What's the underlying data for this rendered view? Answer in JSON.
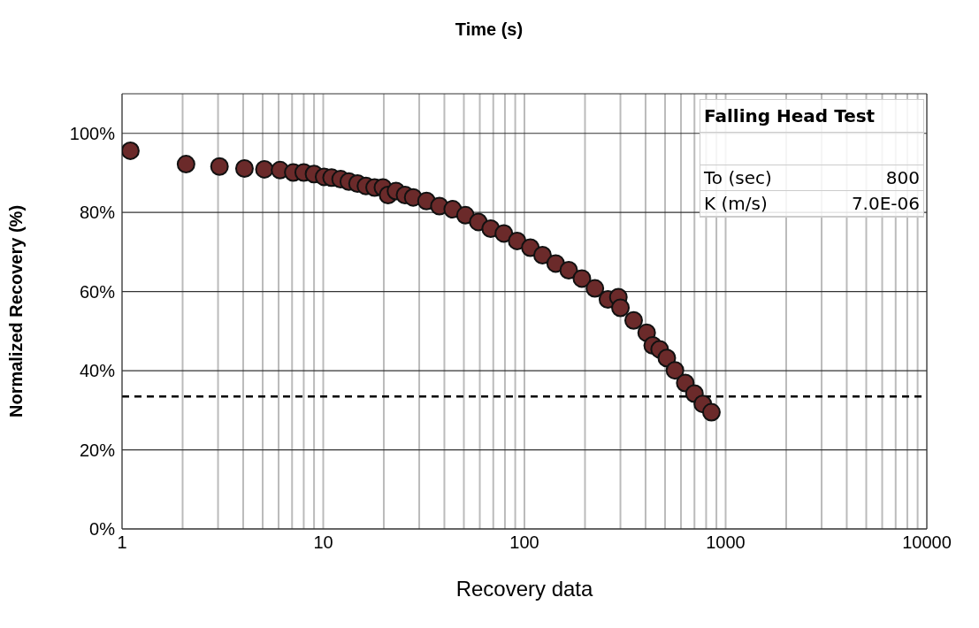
{
  "chart_data": {
    "type": "scatter",
    "title": "Time (s)",
    "xlabel": "Recovery data",
    "ylabel": "Normalized Recovery (%)",
    "annotations": [
      "Falling Head Test",
      "To (sec)",
      "800",
      "K (m/s)",
      "7.0E-06"
    ],
    "log": "x",
    "xlim": [
      1,
      10000
    ],
    "xticks": [
      1,
      10,
      100,
      1000,
      10000
    ],
    "ylim": [
      0,
      110
    ],
    "yticks": [
      {
        "value": 0,
        "label": "0%"
      },
      {
        "value": 20,
        "label": "20%"
      },
      {
        "value": 40,
        "label": "40%"
      },
      {
        "value": 60,
        "label": "60%"
      },
      {
        "value": 80,
        "label": "80%"
      },
      {
        "value": 100,
        "label": "100%"
      }
    ],
    "grid": true,
    "marker": "circle",
    "ref_lines": [
      {
        "axis": "y",
        "value": 33.5,
        "color": "#000000",
        "line_style": "dashed"
      }
    ],
    "series": [
      {
        "color": "#6b2a2a",
        "x": [
          1.1,
          2.08,
          3.05,
          4.06,
          5.1,
          6.1,
          7.1,
          8.0,
          9.0,
          10.1,
          11,
          12.2,
          13.4,
          14.8,
          16.3,
          18.0,
          19.8,
          21,
          23,
          25.5,
          28,
          32.6,
          37.8,
          44,
          50.9,
          59,
          68,
          79,
          92,
          107,
          123,
          143,
          166,
          193,
          224,
          260,
          293,
          300,
          349,
          405,
          434,
          470,
          510,
          560,
          630,
          700,
          770,
          850
        ],
        "values": [
          95.6,
          92.2,
          91.6,
          91.1,
          90.9,
          90.7,
          90.1,
          90.1,
          89.7,
          89.0,
          88.8,
          88.4,
          87.8,
          87.3,
          86.7,
          86.3,
          86.3,
          84.4,
          85.4,
          84.4,
          83.8,
          82.9,
          81.6,
          80.8,
          79.3,
          77.6,
          75.9,
          74.7,
          72.8,
          71.1,
          69.2,
          67.1,
          65.4,
          63.3,
          60.8,
          58.0,
          58.6,
          55.9,
          52.7,
          49.6,
          46.4,
          45.4,
          43.2,
          40.1,
          36.9,
          34.2,
          31.6,
          29.5
        ]
      }
    ]
  }
}
